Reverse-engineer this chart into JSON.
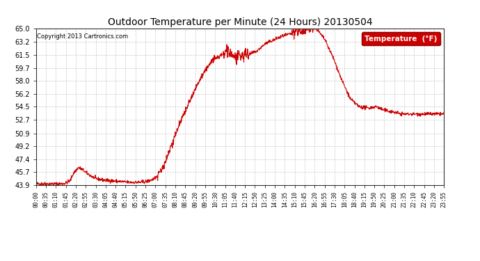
{
  "title": "Outdoor Temperature per Minute (24 Hours) 20130504",
  "copyright": "Copyright 2013 Cartronics.com",
  "legend_label": "Temperature  (°F)",
  "line_color": "#cc0000",
  "background_color": "#ffffff",
  "grid_color": "#bbbbbb",
  "yticks": [
    43.9,
    45.7,
    47.4,
    49.2,
    50.9,
    52.7,
    54.5,
    56.2,
    58.0,
    59.7,
    61.5,
    63.2,
    65.0
  ],
  "ymin": 43.9,
  "ymax": 65.0,
  "xtick_labels": [
    "00:00",
    "00:35",
    "01:10",
    "01:45",
    "02:20",
    "02:55",
    "03:30",
    "04:05",
    "04:40",
    "05:15",
    "05:50",
    "06:25",
    "07:00",
    "07:35",
    "08:10",
    "08:45",
    "09:20",
    "09:55",
    "10:30",
    "11:05",
    "11:40",
    "12:15",
    "12:50",
    "13:25",
    "14:00",
    "14:35",
    "15:10",
    "15:45",
    "16:20",
    "16:55",
    "17:30",
    "18:05",
    "18:40",
    "19:15",
    "19:50",
    "20:25",
    "21:00",
    "21:35",
    "22:10",
    "22:45",
    "23:20",
    "23:55"
  ],
  "n_points": 1440,
  "key_times": [
    0.0,
    0.5,
    1.0,
    1.5,
    1.75,
    2.0,
    2.2,
    2.5,
    2.75,
    3.0,
    3.5,
    4.0,
    4.5,
    5.0,
    5.5,
    6.0,
    6.5,
    7.0,
    7.5,
    8.0,
    8.5,
    9.0,
    9.5,
    10.0,
    10.5,
    11.0,
    11.3,
    11.5,
    11.8,
    12.0,
    12.3,
    12.5,
    13.0,
    13.5,
    14.0,
    14.5,
    15.0,
    15.5,
    16.0,
    16.3,
    16.5,
    17.0,
    17.5,
    18.0,
    18.5,
    19.0,
    19.5,
    20.0,
    20.5,
    21.0,
    21.5,
    22.0,
    22.5,
    23.0,
    23.5,
    24.0
  ],
  "key_temps": [
    44.1,
    44.1,
    44.1,
    44.1,
    44.2,
    44.5,
    45.5,
    46.3,
    46.0,
    45.5,
    44.8,
    44.6,
    44.5,
    44.4,
    44.3,
    44.3,
    44.4,
    44.8,
    46.5,
    49.5,
    52.5,
    55.0,
    57.5,
    59.5,
    61.0,
    61.5,
    62.0,
    61.5,
    61.0,
    61.2,
    61.5,
    61.5,
    62.0,
    63.0,
    63.5,
    64.0,
    64.3,
    64.7,
    65.0,
    65.2,
    65.0,
    63.5,
    61.0,
    58.0,
    55.5,
    54.5,
    54.3,
    54.5,
    54.0,
    53.8,
    53.5,
    53.5,
    53.5,
    53.5,
    53.5,
    53.5
  ]
}
